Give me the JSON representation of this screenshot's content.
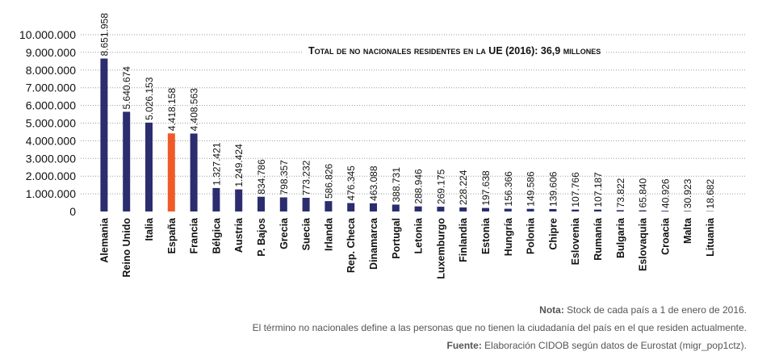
{
  "chart_data": {
    "type": "bar",
    "categories": [
      "Alemania",
      "Reino Unido",
      "Italia",
      "España",
      "Francia",
      "Bélgica",
      "Austria",
      "P. Bajos",
      "Grecia",
      "Suecia",
      "Irlanda",
      "Rep. Checa",
      "Dinamarca",
      "Portugal",
      "Letonia",
      "Luxemburgo",
      "Finlandia",
      "Estonia",
      "Hungría",
      "Polonia",
      "Chipre",
      "Eslovenia",
      "Rumanía",
      "Bulgaria",
      "Eslovaquia",
      "Croacia",
      "Malta",
      "Lituania"
    ],
    "values": [
      8651958,
      5640674,
      5026153,
      4418158,
      4408563,
      1327421,
      1249424,
      834786,
      798357,
      773232,
      586826,
      476345,
      463088,
      388731,
      288946,
      269175,
      228224,
      197638,
      156366,
      149586,
      139606,
      107766,
      107187,
      73822,
      65840,
      40926,
      30923,
      18682
    ],
    "value_labels": [
      "8.651.958",
      "5.640.674",
      "5.026.153",
      "4.418.158",
      "4.408.563",
      "1.327.421",
      "1.249.424",
      "834.786",
      "798.357",
      "773.232",
      "586.826",
      "476.345",
      "463.088",
      "388.731",
      "288.946",
      "269.175",
      "228.224",
      "197.638",
      "156.366",
      "149.586",
      "139.606",
      "107.766",
      "107.187",
      "73.822",
      "65.840",
      "40.926",
      "30.923",
      "18.682"
    ],
    "highlight_index": 3,
    "ylim": [
      0,
      10000000
    ],
    "yticks": [
      0,
      1000000,
      2000000,
      3000000,
      4000000,
      5000000,
      6000000,
      7000000,
      8000000,
      9000000,
      10000000
    ],
    "ytick_labels": [
      "0",
      "1.000.000",
      "2.000.000",
      "3.000.000",
      "4.000.000",
      "5.000.000",
      "6.000.000",
      "7.000.000",
      "8.000.000",
      "9.000.000",
      "10.000.000"
    ],
    "grid": "horizontal-dotted",
    "annotation": "Total de no nacionales residentes en la UE (2016): 36,9 millones",
    "colors": {
      "bar": "#2b2d6e",
      "highlight": "#f05a28",
      "grid": "#9a9a9a"
    }
  },
  "notes": {
    "nota_label": "Nota:",
    "nota_text": " Stock de cada país a 1 de enero de 2016.",
    "line2": "El término no nacionales define a las personas que no tienen la ciudadanía del país en el que residen actualmente.",
    "fuente_label": "Fuente:",
    "fuente_text": " Elaboración CIDOB según datos de Eurostat (migr_pop1ctz)."
  }
}
